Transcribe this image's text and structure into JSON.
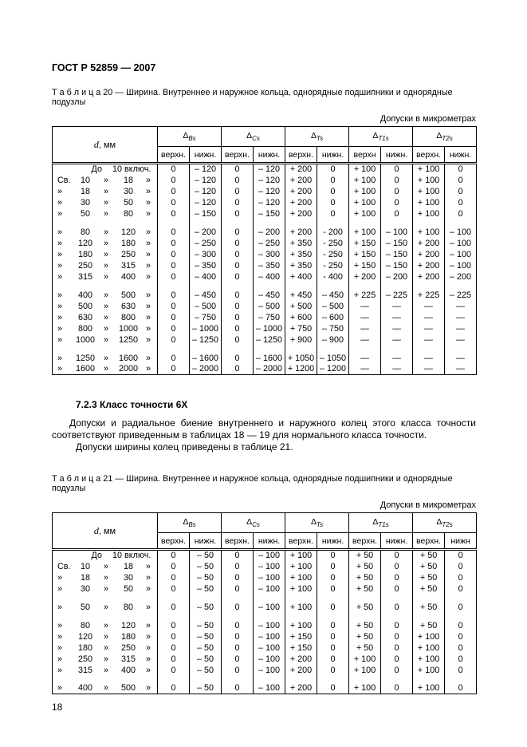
{
  "page": {
    "doc_header": "ГОСТ Р 52859 — 2007",
    "page_number": "18"
  },
  "section": {
    "heading": "7.2.3  Класс точности 6Х",
    "para1": "Допуски и радиальное биение внутреннего и наружного колец этого класса точности соответствуют приведенным в таблицах 18 — 19 для нормального класса точности.",
    "para2": "Допуски ширины колец приведены в таблице 21."
  },
  "table20": {
    "caption": "Т а б л и ц а 20 — Ширина. Внутреннее и наружное кольца, однорядные подшипники и однорядные подузлы",
    "units_note": "Допуски в микрометрах",
    "d_symbol": "d",
    "d_unit": ", мм",
    "groups": [
      {
        "sym": "Δ",
        "sub": "Bs"
      },
      {
        "sym": "Δ",
        "sub": "Cs"
      },
      {
        "sym": "Δ",
        "sub": "Ts"
      },
      {
        "sym": "Δ",
        "sub": "T1s"
      },
      {
        "sym": "Δ",
        "sub": "T2s"
      }
    ],
    "subheads": [
      "верхн.",
      "нижн.",
      "верхн.",
      "нижн.",
      "верхн.",
      "нижн.",
      "верхн",
      "нижн.",
      "верхн.",
      "нижн."
    ],
    "rows": [
      {
        "d0": [
          "До",
          "10 включ."
        ],
        "v": [
          "0",
          "– 120",
          "0",
          "– 120",
          "+ 200",
          "0",
          "+ 100",
          "0",
          "+ 100",
          "0"
        ]
      },
      {
        "d": [
          "Св.",
          "10",
          "»",
          "18",
          "»"
        ],
        "v": [
          "0",
          "– 120",
          "0",
          "– 120",
          "+ 200",
          "0",
          "+ 100",
          "0",
          "+ 100",
          "0"
        ]
      },
      {
        "d": [
          "»",
          "18",
          "»",
          "30",
          "»"
        ],
        "v": [
          "0",
          "– 120",
          "0",
          "– 120",
          "+ 200",
          "0",
          "+ 100",
          "0",
          "+ 100",
          "0"
        ]
      },
      {
        "d": [
          "»",
          "30",
          "»",
          "50",
          "»"
        ],
        "v": [
          "0",
          "– 120",
          "0",
          "– 120",
          "+ 200",
          "0",
          "+ 100",
          "0",
          "+ 100",
          "0"
        ]
      },
      {
        "d": [
          "»",
          "50",
          "»",
          "80",
          "»"
        ],
        "v": [
          "0",
          "– 150",
          "0",
          "– 150",
          "+ 200",
          "0",
          "+ 100",
          "0",
          "+ 100",
          "0"
        ]
      },
      {
        "gap": true
      },
      {
        "d": [
          "»",
          "80",
          "»",
          "120",
          "»"
        ],
        "v": [
          "0",
          "– 200",
          "0",
          "– 200",
          "+ 200",
          "- 200",
          "+ 100",
          "– 100",
          "+ 100",
          "– 100"
        ]
      },
      {
        "d": [
          "»",
          "120",
          "»",
          "180",
          "»"
        ],
        "v": [
          "0",
          "– 250",
          "0",
          "– 250",
          "+ 350",
          "- 250",
          "+ 150",
          "– 150",
          "+ 200",
          "– 100"
        ]
      },
      {
        "d": [
          "»",
          "180",
          "»",
          "250",
          "»"
        ],
        "v": [
          "0",
          "– 300",
          "0",
          "– 300",
          "+ 350",
          "- 250",
          "+ 150",
          "– 150",
          "+ 200",
          "– 100"
        ]
      },
      {
        "d": [
          "»",
          "250",
          "»",
          "315",
          "»"
        ],
        "v": [
          "0",
          "– 350",
          "0",
          "– 350",
          "+ 350",
          "- 250",
          "+ 150",
          "– 150",
          "+ 200",
          "– 100"
        ]
      },
      {
        "d": [
          "»",
          "315",
          "»",
          "400",
          "»"
        ],
        "v": [
          "0",
          "– 400",
          "0",
          "– 400",
          "+ 400",
          "- 400",
          "+ 200",
          "– 200",
          "+ 200",
          "– 200"
        ]
      },
      {
        "gap": true
      },
      {
        "d": [
          "»",
          "400",
          "»",
          "500",
          "»"
        ],
        "v": [
          "0",
          "– 450",
          "0",
          "– 450",
          "+ 450",
          "– 450",
          "+ 225",
          "– 225",
          "+ 225",
          "– 225"
        ]
      },
      {
        "d": [
          "»",
          "500",
          "»",
          "630",
          "»"
        ],
        "v": [
          "0",
          "– 500",
          "0",
          "– 500",
          "+ 500",
          "– 500",
          "—",
          "—",
          "—",
          "—"
        ]
      },
      {
        "d": [
          "»",
          "630",
          "»",
          "800",
          "»"
        ],
        "v": [
          "0",
          "– 750",
          "0",
          "– 750",
          "+ 600",
          "– 600",
          "—",
          "—",
          "—",
          "—"
        ]
      },
      {
        "d": [
          "»",
          "800",
          "»",
          "1000",
          "»"
        ],
        "v": [
          "0",
          "– 1000",
          "0",
          "– 1000",
          "+ 750",
          "– 750",
          "—",
          "—",
          "—",
          "—"
        ]
      },
      {
        "d": [
          "»",
          "1000",
          "»",
          "1250",
          "»"
        ],
        "v": [
          "0",
          "– 1250",
          "0",
          "– 1250",
          "+ 900",
          "– 900",
          "—",
          "—",
          "—",
          "—"
        ]
      },
      {
        "gap": true
      },
      {
        "d": [
          "»",
          "1250",
          "»",
          "1600",
          "»"
        ],
        "v": [
          "0",
          "– 1600",
          "0",
          "– 1600",
          "+ 1050",
          "– 1050",
          "—",
          "—",
          "—",
          "—"
        ]
      },
      {
        "d": [
          "»",
          "1600",
          "»",
          "2000",
          "»"
        ],
        "v": [
          "0",
          "– 2000",
          "0",
          "– 2000",
          "+ 1200",
          "– 1200",
          "—",
          "—",
          "—",
          "—"
        ]
      }
    ]
  },
  "table21": {
    "caption": "Т а б л и ц а 21 — Ширина. Внутреннее и наружное кольца, однорядные подшипники и однорядные подузлы",
    "units_note": "Допуски в микрометрах",
    "d_symbol": "d",
    "d_unit": ", мм",
    "groups": [
      {
        "sym": "Δ",
        "sub": "Bs"
      },
      {
        "sym": "Δ",
        "sub": "Cs"
      },
      {
        "sym": "Δ",
        "sub": "Ts"
      },
      {
        "sym": "Δ",
        "sub": "T1s"
      },
      {
        "sym": "Δ",
        "sub": "T2s"
      }
    ],
    "subheads": [
      "верхн.",
      "нижн.",
      "верхн.",
      "нижн.",
      "верхн.",
      "нижн.",
      "верхн.",
      "нижн.",
      "верхн.",
      "нижн"
    ],
    "rows": [
      {
        "d0": [
          "До",
          "10 включ."
        ],
        "v": [
          "0",
          "– 50",
          "0",
          "– 100",
          "+ 100",
          "0",
          "+ 50",
          "0",
          "+ 50",
          "0"
        ]
      },
      {
        "d": [
          "Св.",
          "10",
          "»",
          "18",
          "»"
        ],
        "v": [
          "0",
          "– 50",
          "0",
          "– 100",
          "+ 100",
          "0",
          "+ 50",
          "0",
          "+ 50",
          "0"
        ]
      },
      {
        "d": [
          "»",
          "18",
          "»",
          "30",
          "»"
        ],
        "v": [
          "0",
          "– 50",
          "0",
          "– 100",
          "+ 100",
          "0",
          "+ 50",
          "0",
          "+ 50",
          "0"
        ]
      },
      {
        "d": [
          "»",
          "30",
          "»",
          "50",
          "»"
        ],
        "v": [
          "0",
          "– 50",
          "0",
          "– 100",
          "+ 100",
          "0",
          "+ 50",
          "0",
          "+ 50",
          "0"
        ]
      },
      {
        "gap": true
      },
      {
        "d": [
          "»",
          "50",
          "»",
          "80",
          "»"
        ],
        "v": [
          "0",
          "– 50",
          "0",
          "– 100",
          "+ 100",
          "0",
          "+ 50",
          "0",
          "+ 50",
          "0"
        ]
      },
      {
        "gap": true
      },
      {
        "d": [
          "»",
          "80",
          "»",
          "120",
          "»"
        ],
        "v": [
          "0",
          "– 50",
          "0",
          "– 100",
          "+ 100",
          "0",
          "+ 50",
          "0",
          "+ 50",
          "0"
        ]
      },
      {
        "d": [
          "»",
          "120",
          "»",
          "180",
          "»"
        ],
        "v": [
          "0",
          "– 50",
          "0",
          "– 100",
          "+ 150",
          "0",
          "+ 50",
          "0",
          "+ 100",
          "0"
        ]
      },
      {
        "d": [
          "»",
          "180",
          "»",
          "250",
          "»"
        ],
        "v": [
          "0",
          "– 50",
          "0",
          "– 100",
          "+ 150",
          "0",
          "+ 50",
          "0",
          "+ 100",
          "0"
        ]
      },
      {
        "d": [
          "»",
          "250",
          "»",
          "315",
          "»"
        ],
        "v": [
          "0",
          "– 50",
          "0",
          "– 100",
          "+ 200",
          "0",
          "+ 100",
          "0",
          "+ 100",
          "0"
        ]
      },
      {
        "d": [
          "»",
          "315",
          "»",
          "400",
          "»"
        ],
        "v": [
          "0",
          "– 50",
          "0",
          "– 100",
          "+ 200",
          "0",
          "+ 100",
          "0",
          "+ 100",
          "0"
        ]
      },
      {
        "gap": true
      },
      {
        "d": [
          "»",
          "400",
          "»",
          "500",
          "»"
        ],
        "v": [
          "0",
          "– 50",
          "0",
          "– 100",
          "+ 200",
          "0",
          "+ 100",
          "0",
          "+ 100",
          "0"
        ]
      }
    ]
  }
}
